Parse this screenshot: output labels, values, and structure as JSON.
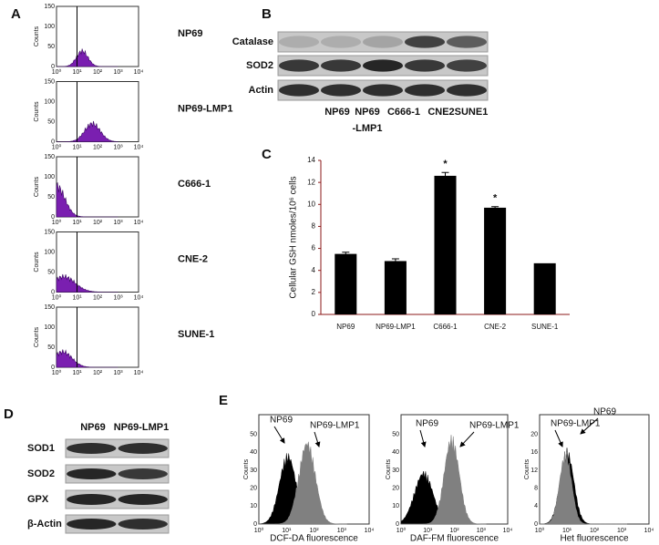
{
  "panel_letters": [
    "A",
    "B",
    "C",
    "D",
    "E"
  ],
  "panel_a": {
    "cell_lines": [
      "NP69",
      "NP69-LMP1",
      "C666-1",
      "CNE-2",
      "SUNE-1"
    ],
    "x_tick_labels": [
      "10⁰",
      "10¹",
      "10²",
      "10³",
      "10⁴"
    ],
    "y_tick_labels": [
      "0",
      "50",
      "100",
      "150"
    ],
    "y_axis_label": "Counts"
  },
  "panel_b": {
    "proteins": [
      "Catalase",
      "SOD2",
      "Actin"
    ],
    "lanes": [
      "NP69",
      "NP69",
      "C666-1",
      "CNE2",
      "SUNE1"
    ],
    "lane_sublabel": "-LMP1"
  },
  "chart_data": {
    "type": "bar",
    "y_label": "Cellular GSH nmoles/10⁶ cells",
    "categories": [
      "NP69",
      "NP69-LMP1",
      "C666-1",
      "CNE-2",
      "SUNE-1"
    ],
    "values": [
      5.5,
      4.85,
      12.6,
      9.7,
      4.65
    ],
    "errors": [
      0.15,
      0.2,
      0.3,
      0.1,
      null
    ],
    "color": "#000000",
    "ylim": [
      0,
      14
    ],
    "yticks": [
      0,
      2,
      4,
      6,
      8,
      10,
      12,
      14
    ],
    "annotations": [
      {
        "category": "C666-1",
        "text": "*"
      },
      {
        "category": "CNE-2",
        "text": "*"
      }
    ]
  },
  "panel_d": {
    "lanes": [
      "NP69",
      "NP69-LMP1"
    ],
    "proteins": [
      "SOD1",
      "SOD2",
      "GPX",
      "β-Actin"
    ]
  },
  "panel_e": {
    "x_tick_labels": [
      "10⁰",
      "10¹",
      "10²",
      "10³",
      "10⁴"
    ],
    "y_axis_label": "Counts",
    "plots": [
      {
        "x_label": "DCF-DA fluorescence",
        "y_tick_labels": [
          "0",
          "10",
          "20",
          "30",
          "40",
          "50"
        ],
        "labels": [
          "NP69",
          "NP69-LMP1"
        ]
      },
      {
        "x_label": "DAF-FM fluorescence",
        "y_tick_labels": [
          "0",
          "10",
          "20",
          "30",
          "40",
          "50"
        ],
        "labels": [
          "NP69",
          "NP69-LMP1"
        ]
      },
      {
        "x_label": "Het fluorescence",
        "y_tick_labels": [
          "0",
          "4",
          "8",
          "12",
          "16",
          "20"
        ],
        "labels": [
          "NP69-LMP1",
          "NP69"
        ]
      }
    ]
  }
}
